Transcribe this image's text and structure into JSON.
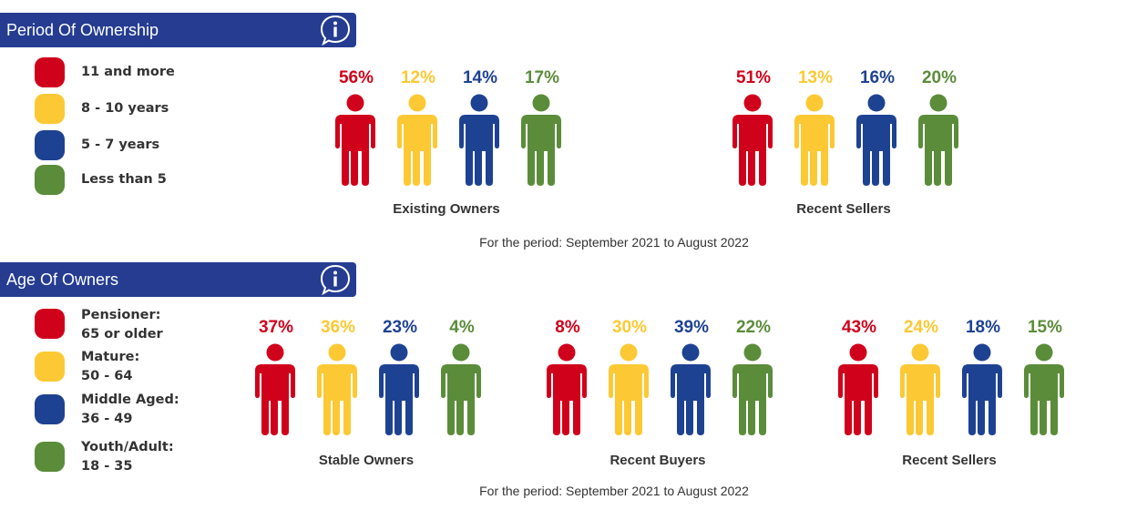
{
  "colors": {
    "header_bg": "#253c91",
    "red": "#d0021b",
    "yellow": "#fcc934",
    "blue": "#1e4292",
    "green": "#5b8c3a"
  },
  "ownership": {
    "title": "Period Of Ownership",
    "info_icon": "info-icon",
    "legend": [
      {
        "label": "11 and more",
        "color": "#d0021b"
      },
      {
        "label": "8 - 10 years",
        "color": "#fcc934"
      },
      {
        "label": "5 - 7 years",
        "color": "#1e4292"
      },
      {
        "label": "Less than 5",
        "color": "#5b8c3a"
      }
    ],
    "period_note": "For the period: September 2021 to August 2022"
  },
  "age": {
    "title": "Age Of Owners",
    "info_icon": "info-icon",
    "legend": [
      {
        "label": "Pensioner:",
        "sublabel": "65 or older",
        "color": "#d0021b"
      },
      {
        "label": "Mature:",
        "sublabel": "50 - 64",
        "color": "#fcc934"
      },
      {
        "label": "Middle Aged:",
        "sublabel": "36 - 49",
        "color": "#1e4292"
      },
      {
        "label": "Youth/Adult:",
        "sublabel": "18 - 35",
        "color": "#5b8c3a"
      }
    ],
    "period_note": "For the period: September 2021 to August 2022"
  },
  "chart_data": [
    {
      "type": "bar",
      "title": "Period Of Ownership",
      "categories": [
        "11 and more",
        "8 - 10 years",
        "5 - 7 years",
        "Less than 5"
      ],
      "series": [
        {
          "name": "Existing Owners",
          "values": [
            56,
            12,
            14,
            17
          ],
          "labels": [
            "56%",
            "12%",
            "14%",
            "17%"
          ]
        },
        {
          "name": "Recent Sellers",
          "values": [
            51,
            13,
            16,
            20
          ],
          "labels": [
            "51%",
            "13%",
            "16%",
            "20%"
          ]
        }
      ]
    },
    {
      "type": "bar",
      "title": "Age Of Owners",
      "categories": [
        "Pensioner: 65 or older",
        "Mature: 50 - 64",
        "Middle Aged: 36 - 49",
        "Youth/Adult: 18 - 35"
      ],
      "series": [
        {
          "name": "Stable Owners",
          "values": [
            37,
            36,
            23,
            4
          ],
          "labels": [
            "37%",
            "36%",
            "23%",
            "4%"
          ]
        },
        {
          "name": "Recent Buyers",
          "values": [
            8,
            30,
            39,
            22
          ],
          "labels": [
            "8%",
            "30%",
            "39%",
            "22%"
          ]
        },
        {
          "name": "Recent Sellers",
          "values": [
            43,
            24,
            18,
            15
          ],
          "labels": [
            "43%",
            "24%",
            "18%",
            "15%"
          ]
        }
      ]
    }
  ]
}
